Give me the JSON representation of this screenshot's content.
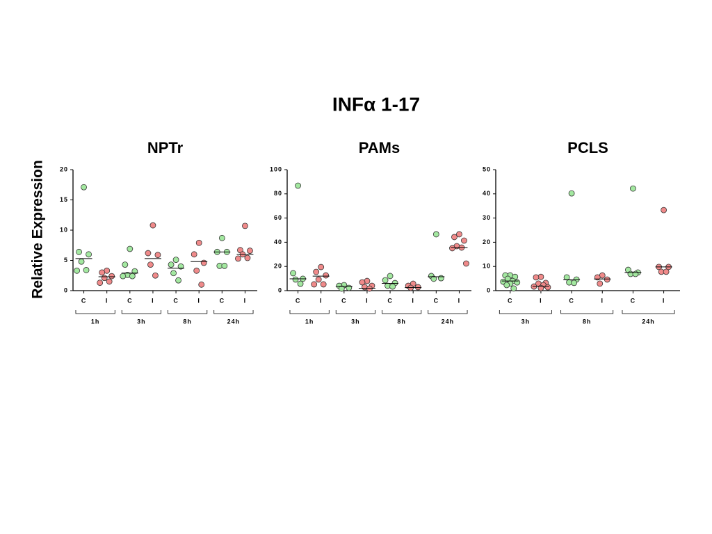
{
  "title": "INFα 1-17",
  "ylabel": "Relative Expression",
  "chart_data": [
    {
      "type": "dot",
      "title": "NPTr",
      "categories": [
        "C",
        "I",
        "C",
        "I",
        "C",
        "I",
        "C",
        "I"
      ],
      "groups": [
        "1h",
        "3h",
        "8h",
        "24h"
      ],
      "colors": [
        "#a3e8a0",
        "#f08a8a"
      ],
      "values": [
        [
          17.1,
          6.4,
          6.0,
          4.8,
          3.4,
          3.3
        ],
        [
          3.3,
          3.0,
          2.4,
          2.1,
          1.5,
          1.3
        ],
        [
          6.9,
          4.3,
          3.2,
          2.6,
          2.4,
          2.4
        ],
        [
          10.8,
          6.2,
          5.9,
          4.3,
          2.5
        ],
        [
          5.1,
          4.3,
          4.0,
          2.9,
          1.7
        ],
        [
          7.9,
          6.0,
          4.6,
          3.3,
          1.0
        ],
        [
          8.7,
          6.4,
          6.4,
          4.1,
          4.1
        ],
        [
          10.7,
          6.7,
          6.6,
          6.0,
          5.4,
          5.3
        ]
      ],
      "medians": [
        5.3,
        2.3,
        2.9,
        5.3,
        3.7,
        4.8,
        6.4,
        6.0
      ],
      "ylim": [
        0,
        20
      ],
      "yticks": [
        0,
        5,
        10,
        15,
        20
      ]
    },
    {
      "type": "dot",
      "title": "PAMs",
      "categories": [
        "C",
        "I",
        "C",
        "I",
        "C",
        "I",
        "C",
        "I"
      ],
      "groups": [
        "1h",
        "3h",
        "8h",
        "24h"
      ],
      "colors": [
        "#a3e8a0",
        "#f08a8a"
      ],
      "values": [
        [
          86.8,
          14.4,
          9.8,
          9.2,
          5.7
        ],
        [
          19.5,
          15.5,
          12.6,
          9.2,
          5.2,
          5.2
        ],
        [
          4.6,
          4.0,
          2.3,
          1.7
        ],
        [
          8.0,
          6.9,
          4.0,
          2.9,
          1.7
        ],
        [
          12.1,
          8.6,
          6.3,
          4.0,
          3.4
        ],
        [
          5.7,
          4.0,
          2.9,
          2.3
        ],
        [
          46.6,
          12.1,
          10.3,
          9.8
        ],
        [
          46.6,
          44.3,
          41.4,
          36.8,
          35.6,
          35.1,
          22.4
        ]
      ],
      "medians": [
        9.8,
        12,
        3.5,
        2,
        6,
        2.5,
        11.5,
        35.6
      ],
      "ylim": [
        0,
        100
      ],
      "yticks": [
        0,
        20,
        40,
        60,
        80,
        100
      ]
    },
    {
      "type": "dot",
      "title": "PCLS",
      "categories": [
        "C",
        "I",
        "C",
        "I",
        "C",
        "I"
      ],
      "groups": [
        "3h",
        "8h",
        "24h"
      ],
      "colors": [
        "#a3e8a0",
        "#f08a8a"
      ],
      "values": [
        [
          6.3,
          6.3,
          5.7,
          4.9,
          4.0,
          3.7,
          3.4,
          2.9,
          2.3,
          0.9
        ],
        [
          5.7,
          5.5,
          3.2,
          2.9,
          2.3,
          1.7,
          1.4,
          1.1
        ],
        [
          40.2,
          5.5,
          4.6,
          3.4,
          3.2
        ],
        [
          6.3,
          5.5,
          4.6,
          2.9
        ],
        [
          42.2,
          8.6,
          7.5,
          6.9,
          6.9
        ],
        [
          33.3,
          9.8,
          9.8,
          7.8,
          7.8
        ]
      ],
      "medians": [
        4,
        1.8,
        4.5,
        4.8,
        7.5,
        9.8
      ],
      "ylim": [
        0,
        50
      ],
      "yticks": [
        0,
        10,
        20,
        30,
        40,
        50
      ]
    }
  ]
}
